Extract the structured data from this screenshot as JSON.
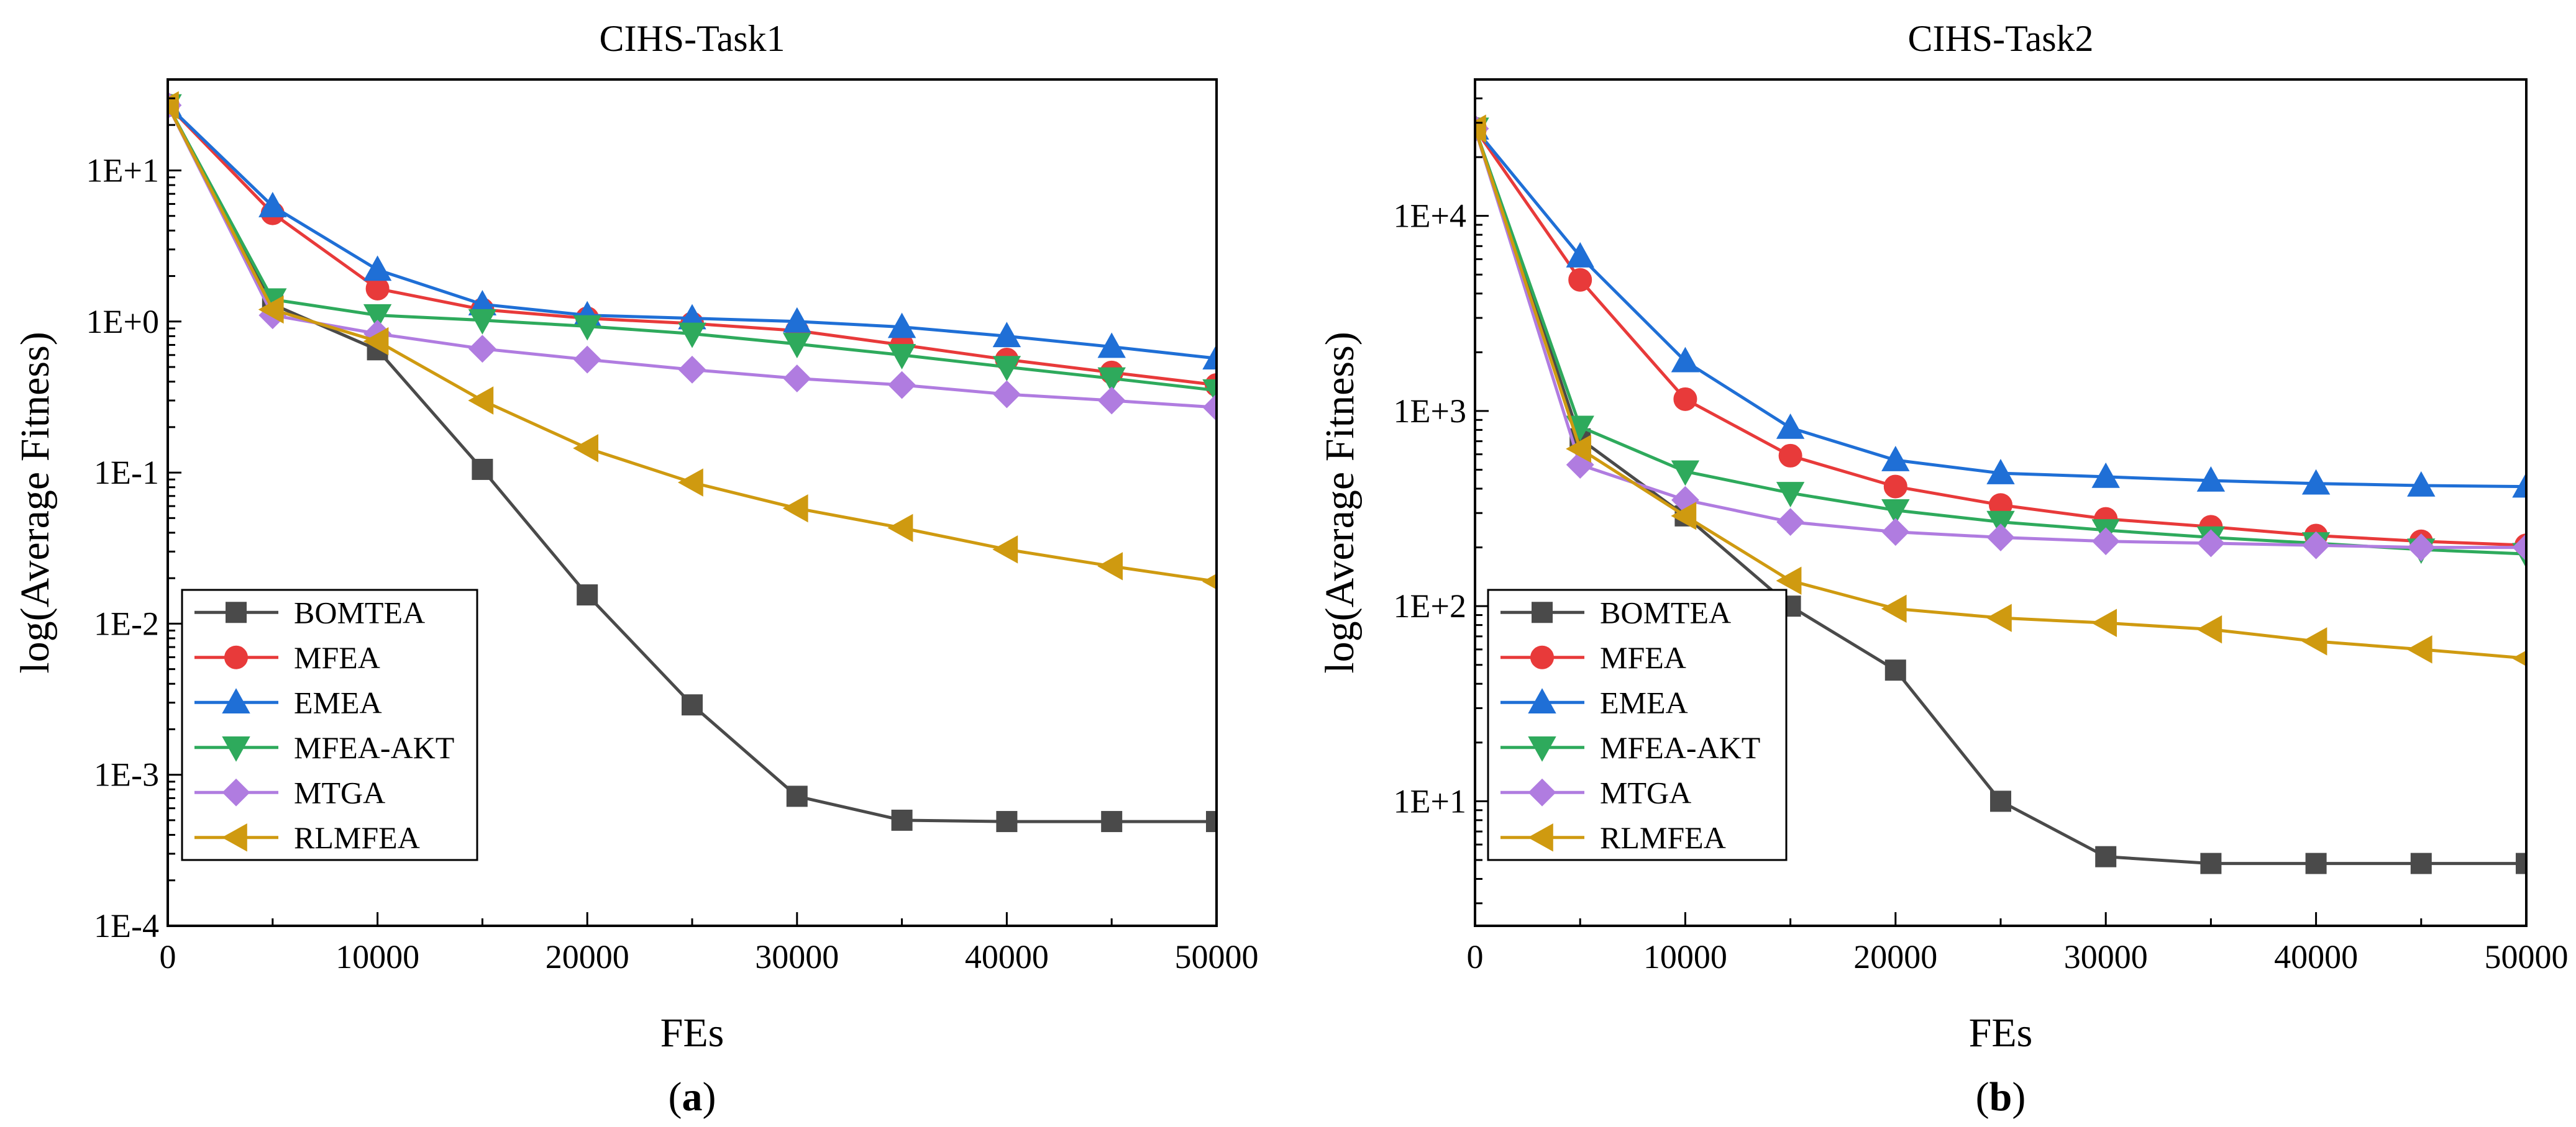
{
  "chart_data": [
    {
      "type": "line",
      "panel_label": "(a)",
      "panel_letter": "a",
      "title": "CIHS-Task1",
      "xlabel": "FEs",
      "ylabel": "log(Average Fitness)",
      "yscale": "log",
      "xlim": [
        0,
        50000
      ],
      "ylim": [
        0.0001,
        40
      ],
      "x_ticks": [
        0,
        10000,
        20000,
        30000,
        40000,
        50000
      ],
      "x_tick_labels": [
        "0",
        "10000",
        "20000",
        "30000",
        "40000",
        "50000"
      ],
      "y_ticks": [
        0.0001,
        0.001,
        0.01,
        0.1,
        1,
        10
      ],
      "y_tick_labels": [
        "1E-4",
        "1E-3",
        "1E-2",
        "1E-1",
        "1E+0",
        "1E+1"
      ],
      "legend_position": "lower-left",
      "x": [
        0,
        5000,
        10000,
        15000,
        20000,
        25000,
        30000,
        35000,
        40000,
        45000,
        50000
      ],
      "series": [
        {
          "name": "BOMTEA",
          "marker": "square",
          "color": "#4a4a4a",
          "values": [
            27,
            1.3,
            0.65,
            0.105,
            0.0155,
            0.0029,
            0.00072,
            0.0005,
            0.00049,
            0.00049,
            0.00049
          ]
        },
        {
          "name": "MFEA",
          "marker": "circle",
          "color": "#e83a3a",
          "values": [
            27,
            5.2,
            1.65,
            1.2,
            1.05,
            0.97,
            0.87,
            0.7,
            0.56,
            0.46,
            0.38
          ]
        },
        {
          "name": "EMEA",
          "marker": "triangle-up",
          "color": "#1f6fd6",
          "values": [
            27,
            5.8,
            2.2,
            1.3,
            1.1,
            1.05,
            1.0,
            0.92,
            0.8,
            0.68,
            0.57
          ]
        },
        {
          "name": " MFEA-AKT",
          "marker": "triangle-down",
          "color": "#2eaa5c",
          "values": [
            27,
            1.4,
            1.1,
            1.02,
            0.93,
            0.83,
            0.71,
            0.6,
            0.5,
            0.42,
            0.35
          ]
        },
        {
          "name": "MTGA",
          "marker": "diamond",
          "color": "#b07ce0",
          "values": [
            27,
            1.1,
            0.83,
            0.66,
            0.56,
            0.48,
            0.42,
            0.38,
            0.33,
            0.3,
            0.27
          ]
        },
        {
          "name": "RLMFEA",
          "marker": "triangle-left",
          "color": "#cf9a10",
          "values": [
            27,
            1.2,
            0.74,
            0.3,
            0.145,
            0.086,
            0.058,
            0.043,
            0.031,
            0.024,
            0.019
          ]
        }
      ]
    },
    {
      "type": "line",
      "panel_label": "(b)",
      "panel_letter": "b",
      "title": "CIHS-Task2",
      "xlabel": "FEs",
      "ylabel": "log(Average Fitness)",
      "yscale": "log",
      "xlim": [
        0,
        50000
      ],
      "ylim": [
        2.3,
        50000
      ],
      "x_ticks": [
        0,
        10000,
        20000,
        30000,
        40000,
        50000
      ],
      "x_tick_labels": [
        "0",
        "10000",
        "20000",
        "30000",
        "40000",
        "50000"
      ],
      "y_ticks": [
        10,
        100,
        1000,
        10000
      ],
      "y_tick_labels": [
        "1E+1",
        "1E+2",
        "1E+3",
        "1E+4"
      ],
      "legend_position": "lower-left",
      "x": [
        0,
        5000,
        10000,
        15000,
        20000,
        25000,
        30000,
        35000,
        40000,
        45000,
        50000
      ],
      "series": [
        {
          "name": "BOMTEA",
          "marker": "square",
          "color": "#4a4a4a",
          "values": [
            28000,
            720,
            290,
            100,
            47,
            10,
            5.2,
            4.8,
            4.8,
            4.8,
            4.8
          ]
        },
        {
          "name": "MFEA",
          "marker": "circle",
          "color": "#e83a3a",
          "values": [
            28000,
            4700,
            1150,
            590,
            410,
            330,
            280,
            255,
            230,
            215,
            205
          ]
        },
        {
          "name": "EMEA",
          "marker": "triangle-up",
          "color": "#1f6fd6",
          "values": [
            28000,
            6200,
            1800,
            820,
            560,
            480,
            460,
            440,
            425,
            415,
            410
          ]
        },
        {
          "name": " MFEA-AKT",
          "marker": "triangle-down",
          "color": "#2eaa5c",
          "values": [
            28000,
            830,
            490,
            380,
            310,
            270,
            245,
            225,
            210,
            195,
            185
          ]
        },
        {
          "name": "MTGA",
          "marker": "diamond",
          "color": "#b07ce0",
          "values": [
            28000,
            530,
            350,
            270,
            240,
            225,
            215,
            210,
            205,
            200,
            200
          ]
        },
        {
          "name": "RLMFEA",
          "marker": "triangle-left",
          "color": "#cf9a10",
          "values": [
            28000,
            640,
            290,
            135,
            97,
            87,
            82,
            76,
            66,
            60,
            54
          ]
        }
      ]
    }
  ]
}
